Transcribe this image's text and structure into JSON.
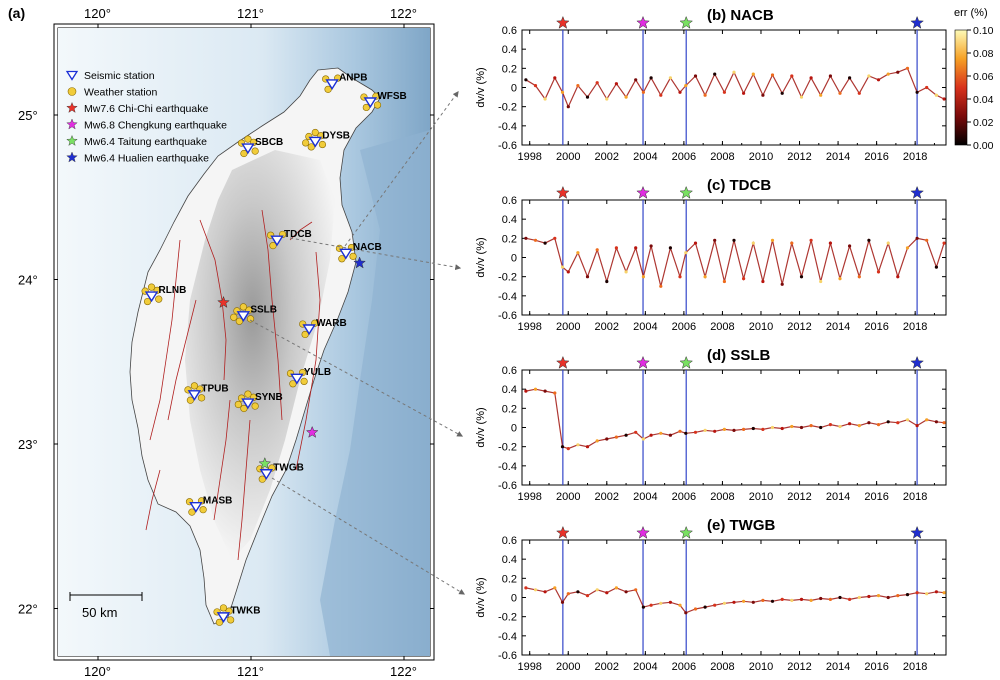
{
  "colors": {
    "station_edge": "#1a2fd6",
    "weather_fill": "#f1cc3a",
    "weather_edge": "#8a6a00",
    "chichi": "#e8322a",
    "chengkung": "#e02ee0",
    "taitung": "#7ae063",
    "hualien": "#1f2ecf",
    "eq_line": "#3346c9",
    "fault": "#b01f1f",
    "land_low": "#f7f7f7",
    "land_high": "#9a9a9a",
    "sea_shallow": "#e9f3f8",
    "sea_deep": "#86aed0"
  },
  "map": {
    "panel_label": "(a)",
    "lon_ticks": [
      "120°",
      "121°",
      "122°"
    ],
    "lat_ticks": [
      "25°",
      "24°",
      "23°",
      "22°"
    ],
    "scale_bar_label": "50 km",
    "legend": [
      {
        "symbol": "triangle",
        "label": "Seismic station"
      },
      {
        "symbol": "circle",
        "label": "Weather station"
      },
      {
        "symbol": "star",
        "color_key": "chichi",
        "label": "Mw7.6 Chi-Chi earthquake"
      },
      {
        "symbol": "star",
        "color_key": "chengkung",
        "label": "Mw6.8 Chengkung earthquake"
      },
      {
        "symbol": "star",
        "color_key": "taitung",
        "label": "Mw6.4 Taitung earthquake"
      },
      {
        "symbol": "star",
        "color_key": "hualien",
        "label": "Mw6.4 Hualien earthquake"
      }
    ],
    "stations": [
      {
        "name": "ANPB",
        "lon": 121.53,
        "lat": 25.19
      },
      {
        "name": "WFSB",
        "lon": 121.78,
        "lat": 25.08
      },
      {
        "name": "SBCB",
        "lon": 120.98,
        "lat": 24.8
      },
      {
        "name": "DYSB",
        "lon": 121.42,
        "lat": 24.84
      },
      {
        "name": "TDCB",
        "lon": 121.17,
        "lat": 24.24
      },
      {
        "name": "NACB",
        "lon": 121.62,
        "lat": 24.16
      },
      {
        "name": "RLNB",
        "lon": 120.35,
        "lat": 23.9
      },
      {
        "name": "SSLB",
        "lon": 120.95,
        "lat": 23.78
      },
      {
        "name": "WARB",
        "lon": 121.38,
        "lat": 23.7
      },
      {
        "name": "YULB",
        "lon": 121.3,
        "lat": 23.4
      },
      {
        "name": "TPUB",
        "lon": 120.63,
        "lat": 23.3
      },
      {
        "name": "SYNB",
        "lon": 120.98,
        "lat": 23.25
      },
      {
        "name": "TWGB",
        "lon": 121.1,
        "lat": 22.82
      },
      {
        "name": "MASB",
        "lon": 120.64,
        "lat": 22.62
      },
      {
        "name": "TWKB",
        "lon": 120.82,
        "lat": 21.95
      }
    ],
    "earthquakes": [
      {
        "key": "chichi",
        "lon": 120.82,
        "lat": 23.86
      },
      {
        "key": "chengkung",
        "lon": 121.4,
        "lat": 23.07
      },
      {
        "key": "taitung",
        "lon": 121.09,
        "lat": 22.88
      },
      {
        "key": "hualien",
        "lon": 121.71,
        "lat": 24.1
      }
    ]
  },
  "colorbar": {
    "title": "err (%)",
    "ticks": [
      "0.10",
      "0.08",
      "0.06",
      "0.04",
      "0.02",
      "0.00"
    ]
  },
  "chart_data": [
    {
      "type": "scatter",
      "panel": "(b)",
      "station": "NACB",
      "title": "(b) NACB",
      "xlabel": "",
      "ylabel": "dv/v (%)",
      "xlim": [
        1997.6,
        2019.6
      ],
      "ylim": [
        -0.6,
        0.6
      ],
      "x_ticks": [
        1998,
        2000,
        2002,
        2004,
        2006,
        2008,
        2010,
        2012,
        2014,
        2016,
        2018
      ],
      "y_ticks": [
        "0.6",
        "0.4",
        "0.2",
        "0",
        "-0.2",
        "-0.4",
        "-0.6"
      ],
      "earthquake_times": [
        1999.72,
        2003.88,
        2006.12,
        2018.1
      ],
      "x": [
        1997.8,
        1998.3,
        1998.8,
        1999.3,
        1999.7,
        2000.0,
        2000.5,
        2001.0,
        2001.5,
        2002.0,
        2002.5,
        2003.0,
        2003.5,
        2003.9,
        2004.3,
        2004.8,
        2005.3,
        2005.8,
        2006.1,
        2006.6,
        2007.1,
        2007.6,
        2008.1,
        2008.6,
        2009.1,
        2009.6,
        2010.1,
        2010.6,
        2011.1,
        2011.6,
        2012.1,
        2012.6,
        2013.1,
        2013.6,
        2014.1,
        2014.6,
        2015.1,
        2015.6,
        2016.1,
        2016.6,
        2017.1,
        2017.6,
        2018.1,
        2018.6,
        2019.1,
        2019.5
      ],
      "y": [
        0.08,
        0.02,
        -0.12,
        0.1,
        -0.05,
        -0.2,
        0.02,
        -0.1,
        0.05,
        -0.12,
        0.04,
        -0.1,
        0.08,
        -0.05,
        0.1,
        -0.08,
        0.1,
        -0.05,
        0.02,
        0.12,
        -0.08,
        0.14,
        -0.05,
        0.16,
        -0.06,
        0.14,
        -0.08,
        0.13,
        -0.06,
        0.12,
        -0.1,
        0.1,
        -0.08,
        0.12,
        -0.06,
        0.1,
        -0.06,
        0.12,
        0.08,
        0.14,
        0.16,
        0.2,
        -0.05,
        0.0,
        -0.08,
        -0.12
      ]
    },
    {
      "type": "scatter",
      "panel": "(c)",
      "station": "TDCB",
      "title": "(c) TDCB",
      "xlabel": "",
      "ylabel": "dv/v (%)",
      "xlim": [
        1997.6,
        2019.6
      ],
      "ylim": [
        -0.6,
        0.6
      ],
      "x_ticks": [
        1998,
        2000,
        2002,
        2004,
        2006,
        2008,
        2010,
        2012,
        2014,
        2016,
        2018
      ],
      "y_ticks": [
        "0.6",
        "0.4",
        "0.2",
        "0",
        "-0.2",
        "-0.4",
        "-0.6"
      ],
      "earthquake_times": [
        1999.72,
        2003.88,
        2006.12,
        2018.1
      ],
      "x": [
        1997.8,
        1998.3,
        1998.8,
        1999.3,
        1999.7,
        2000.0,
        2000.5,
        2001.0,
        2001.5,
        2002.0,
        2002.5,
        2003.0,
        2003.5,
        2003.9,
        2004.3,
        2004.8,
        2005.3,
        2005.8,
        2006.1,
        2006.6,
        2007.1,
        2007.6,
        2008.1,
        2008.6,
        2009.1,
        2009.6,
        2010.1,
        2010.6,
        2011.1,
        2011.6,
        2012.1,
        2012.6,
        2013.1,
        2013.6,
        2014.1,
        2014.6,
        2015.1,
        2015.6,
        2016.1,
        2016.6,
        2017.1,
        2017.6,
        2018.1,
        2018.6,
        2019.1,
        2019.5
      ],
      "y": [
        0.2,
        0.18,
        0.15,
        0.2,
        -0.1,
        -0.15,
        0.05,
        -0.2,
        0.08,
        -0.25,
        0.1,
        -0.15,
        0.1,
        -0.2,
        0.12,
        -0.3,
        0.1,
        -0.2,
        0.05,
        0.15,
        -0.2,
        0.18,
        -0.25,
        0.18,
        -0.22,
        0.15,
        -0.25,
        0.18,
        -0.28,
        0.15,
        -0.2,
        0.18,
        -0.25,
        0.15,
        -0.22,
        0.12,
        -0.2,
        0.18,
        -0.15,
        0.15,
        -0.2,
        0.1,
        0.2,
        0.18,
        -0.1,
        0.15
      ]
    },
    {
      "type": "scatter",
      "panel": "(d)",
      "station": "SSLB",
      "title": "(d) SSLB",
      "xlabel": "",
      "ylabel": "dv/v (%)",
      "xlim": [
        1997.6,
        2019.6
      ],
      "ylim": [
        -0.6,
        0.6
      ],
      "x_ticks": [
        1998,
        2000,
        2002,
        2004,
        2006,
        2008,
        2010,
        2012,
        2014,
        2016,
        2018
      ],
      "y_ticks": [
        "0.6",
        "0.4",
        "0.2",
        "0",
        "-0.2",
        "-0.4",
        "-0.6"
      ],
      "earthquake_times": [
        1999.72,
        2003.88,
        2006.12,
        2018.1
      ],
      "x": [
        1997.8,
        1998.3,
        1998.8,
        1999.3,
        1999.7,
        2000.0,
        2000.5,
        2001.0,
        2001.5,
        2002.0,
        2002.5,
        2003.0,
        2003.5,
        2003.9,
        2004.3,
        2004.8,
        2005.3,
        2005.8,
        2006.1,
        2006.6,
        2007.1,
        2007.6,
        2008.1,
        2008.6,
        2009.1,
        2009.6,
        2010.1,
        2010.6,
        2011.1,
        2011.6,
        2012.1,
        2012.6,
        2013.1,
        2013.6,
        2014.1,
        2014.6,
        2015.1,
        2015.6,
        2016.1,
        2016.6,
        2017.1,
        2017.6,
        2018.1,
        2018.6,
        2019.1,
        2019.5
      ],
      "y": [
        0.38,
        0.4,
        0.38,
        0.36,
        -0.2,
        -0.22,
        -0.18,
        -0.2,
        -0.14,
        -0.12,
        -0.1,
        -0.08,
        -0.05,
        -0.12,
        -0.08,
        -0.06,
        -0.08,
        -0.04,
        -0.06,
        -0.05,
        -0.03,
        -0.04,
        -0.02,
        -0.03,
        -0.02,
        -0.01,
        -0.02,
        0.0,
        -0.01,
        0.01,
        0.0,
        0.02,
        0.0,
        0.03,
        0.01,
        0.04,
        0.02,
        0.05,
        0.03,
        0.06,
        0.05,
        0.08,
        0.02,
        0.08,
        0.06,
        0.05
      ]
    },
    {
      "type": "scatter",
      "panel": "(e)",
      "station": "TWGB",
      "title": "(e) TWGB",
      "xlabel": "",
      "ylabel": "dv/v (%)",
      "xlim": [
        1997.6,
        2019.6
      ],
      "ylim": [
        -0.6,
        0.6
      ],
      "x_ticks": [
        1998,
        2000,
        2002,
        2004,
        2006,
        2008,
        2010,
        2012,
        2014,
        2016,
        2018
      ],
      "y_ticks": [
        "0.6",
        "0.4",
        "0.2",
        "0",
        "-0.2",
        "-0.4",
        "-0.6"
      ],
      "earthquake_times": [
        1999.72,
        2003.88,
        2006.12,
        2018.1
      ],
      "x": [
        1997.8,
        1998.3,
        1998.8,
        1999.3,
        1999.7,
        2000.0,
        2000.5,
        2001.0,
        2001.5,
        2002.0,
        2002.5,
        2003.0,
        2003.5,
        2003.9,
        2004.3,
        2004.8,
        2005.3,
        2005.8,
        2006.1,
        2006.6,
        2007.1,
        2007.6,
        2008.1,
        2008.6,
        2009.1,
        2009.6,
        2010.1,
        2010.6,
        2011.1,
        2011.6,
        2012.1,
        2012.6,
        2013.1,
        2013.6,
        2014.1,
        2014.6,
        2015.1,
        2015.6,
        2016.1,
        2016.6,
        2017.1,
        2017.6,
        2018.1,
        2018.6,
        2019.1,
        2019.5
      ],
      "y": [
        0.1,
        0.08,
        0.06,
        0.1,
        -0.05,
        0.04,
        0.06,
        0.02,
        0.08,
        0.05,
        0.1,
        0.06,
        0.08,
        -0.1,
        -0.08,
        -0.06,
        -0.05,
        -0.08,
        -0.16,
        -0.12,
        -0.1,
        -0.08,
        -0.06,
        -0.05,
        -0.04,
        -0.05,
        -0.03,
        -0.04,
        -0.02,
        -0.03,
        -0.02,
        -0.03,
        -0.01,
        -0.02,
        0.0,
        -0.02,
        0.0,
        0.01,
        0.02,
        0.0,
        0.02,
        0.03,
        0.05,
        0.04,
        0.06,
        0.05
      ]
    }
  ]
}
